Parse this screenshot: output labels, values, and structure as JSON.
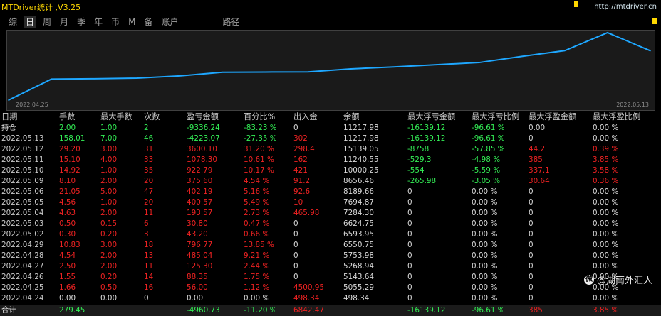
{
  "app": {
    "title": "MTDriver统计 ,V3.25",
    "url": "http://mtdriver.cn"
  },
  "tabs": [
    {
      "label": "综"
    },
    {
      "label": "日"
    },
    {
      "label": "周"
    },
    {
      "label": "月"
    },
    {
      "label": "季"
    },
    {
      "label": "年"
    },
    {
      "label": "币"
    },
    {
      "label": "M"
    },
    {
      "label": "备"
    },
    {
      "label": "账户"
    },
    {
      "label": "路径"
    }
  ],
  "active_tab": "日",
  "chart_data": {
    "type": "line",
    "x_start_label": "2022.04.25",
    "x_end_label": "2022.05.13",
    "x": [
      "2022.04.24",
      "2022.04.25",
      "2022.04.26",
      "2022.04.27",
      "2022.04.28",
      "2022.04.29",
      "2022.05.02",
      "2022.05.03",
      "2022.05.04",
      "2022.05.05",
      "2022.05.06",
      "2022.05.09",
      "2022.05.10",
      "2022.05.11",
      "2022.05.12",
      "2022.05.13"
    ],
    "series": [
      {
        "values": [
          498.34,
          5055.29,
          5143.64,
          5268.94,
          5753.98,
          6550.75,
          6593.95,
          6624.75,
          7284.3,
          7694.87,
          8189.66,
          8656.46,
          10000.25,
          11240.55,
          15139.05,
          11217.98
        ]
      }
    ],
    "line_color": "#1ea7ff"
  },
  "table": {
    "headers": [
      "日期",
      "手数",
      "最大手数",
      "次数",
      "盈亏金额",
      "百分比%",
      "出入金",
      "余额",
      "最大浮亏金额",
      "最大浮亏比例",
      "最大浮盈金额",
      "最大浮盈比例"
    ],
    "rows": [
      {
        "cells": [
          "持仓",
          "2.00",
          "1.00",
          "2",
          "-9336.24",
          "-83.23 %",
          "0",
          "11217.98",
          "-16139.12",
          "-96.61 %",
          "0.00",
          "0.00 %"
        ],
        "colors": [
          "w",
          "g",
          "g",
          "g",
          "g",
          "g",
          "w",
          "w",
          "g",
          "g",
          "w",
          "w"
        ]
      },
      {
        "cells": [
          "2022.05.13",
          "158.01",
          "7.00",
          "46",
          "-4223.07",
          "-27.35 %",
          "302",
          "11217.98",
          "-16139.12",
          "-96.61 %",
          "0",
          "0.00 %"
        ],
        "colors": [
          "w",
          "g",
          "g",
          "g",
          "g",
          "g",
          "r",
          "w",
          "g",
          "g",
          "w",
          "w"
        ]
      },
      {
        "cells": [
          "2022.05.12",
          "29.20",
          "3.00",
          "31",
          "3600.10",
          "31.20 %",
          "298.4",
          "15139.05",
          "-8758",
          "-57.85 %",
          "44.2",
          "0.39 %"
        ],
        "colors": [
          "w",
          "r",
          "r",
          "r",
          "r",
          "r",
          "r",
          "w",
          "g",
          "g",
          "r",
          "r"
        ]
      },
      {
        "cells": [
          "2022.05.11",
          "15.10",
          "4.00",
          "33",
          "1078.30",
          "10.61 %",
          "162",
          "11240.55",
          "-529.3",
          "-4.98 %",
          "385",
          "3.85 %"
        ],
        "colors": [
          "w",
          "r",
          "r",
          "r",
          "r",
          "r",
          "r",
          "w",
          "g",
          "g",
          "r",
          "r"
        ]
      },
      {
        "cells": [
          "2022.05.10",
          "14.92",
          "1.00",
          "35",
          "922.79",
          "10.17 %",
          "421",
          "10000.25",
          "-554",
          "-5.59 %",
          "337.1",
          "3.58 %"
        ],
        "colors": [
          "w",
          "r",
          "r",
          "r",
          "r",
          "r",
          "r",
          "w",
          "g",
          "g",
          "r",
          "r"
        ]
      },
      {
        "cells": [
          "2022.05.09",
          "8.10",
          "2.00",
          "20",
          "375.60",
          "4.54 %",
          "91.2",
          "8656.46",
          "-265.98",
          "-3.05 %",
          "30.64",
          "0.36 %"
        ],
        "colors": [
          "w",
          "r",
          "r",
          "r",
          "r",
          "r",
          "r",
          "w",
          "g",
          "g",
          "r",
          "r"
        ]
      },
      {
        "cells": [
          "2022.05.06",
          "21.05",
          "5.00",
          "47",
          "402.19",
          "5.16 %",
          "92.6",
          "8189.66",
          "0",
          "0.00 %",
          "0",
          "0.00 %"
        ],
        "colors": [
          "w",
          "r",
          "r",
          "r",
          "r",
          "r",
          "r",
          "w",
          "w",
          "w",
          "w",
          "w"
        ]
      },
      {
        "cells": [
          "2022.05.05",
          "4.56",
          "1.00",
          "20",
          "400.57",
          "5.49 %",
          "10",
          "7694.87",
          "0",
          "0.00 %",
          "0",
          "0.00 %"
        ],
        "colors": [
          "w",
          "r",
          "r",
          "r",
          "r",
          "r",
          "r",
          "w",
          "w",
          "w",
          "w",
          "w"
        ]
      },
      {
        "cells": [
          "2022.05.04",
          "4.63",
          "2.00",
          "11",
          "193.57",
          "2.73 %",
          "465.98",
          "7284.30",
          "0",
          "0.00 %",
          "0",
          "0.00 %"
        ],
        "colors": [
          "w",
          "r",
          "r",
          "r",
          "r",
          "r",
          "r",
          "w",
          "w",
          "w",
          "w",
          "w"
        ]
      },
      {
        "cells": [
          "2022.05.03",
          "0.50",
          "0.15",
          "6",
          "30.80",
          "0.47 %",
          "0",
          "6624.75",
          "0",
          "0.00 %",
          "0",
          "0.00 %"
        ],
        "colors": [
          "w",
          "r",
          "r",
          "r",
          "r",
          "r",
          "w",
          "w",
          "w",
          "w",
          "w",
          "w"
        ]
      },
      {
        "cells": [
          "2022.05.02",
          "0.30",
          "0.20",
          "3",
          "43.20",
          "0.66 %",
          "0",
          "6593.95",
          "0",
          "0.00 %",
          "0",
          "0.00 %"
        ],
        "colors": [
          "w",
          "r",
          "r",
          "r",
          "r",
          "r",
          "w",
          "w",
          "w",
          "w",
          "w",
          "w"
        ]
      },
      {
        "cells": [
          "2022.04.29",
          "10.83",
          "3.00",
          "18",
          "796.77",
          "13.85 %",
          "0",
          "6550.75",
          "0",
          "0.00 %",
          "0",
          "0.00 %"
        ],
        "colors": [
          "w",
          "r",
          "r",
          "r",
          "r",
          "r",
          "w",
          "w",
          "w",
          "w",
          "w",
          "w"
        ]
      },
      {
        "cells": [
          "2022.04.28",
          "4.54",
          "2.00",
          "13",
          "485.04",
          "9.21 %",
          "0",
          "5753.98",
          "0",
          "0.00 %",
          "0",
          "0.00 %"
        ],
        "colors": [
          "w",
          "r",
          "r",
          "r",
          "r",
          "r",
          "w",
          "w",
          "w",
          "w",
          "w",
          "w"
        ]
      },
      {
        "cells": [
          "2022.04.27",
          "2.50",
          "2.00",
          "11",
          "125.30",
          "2.44 %",
          "0",
          "5268.94",
          "0",
          "0.00 %",
          "0",
          "0.00 %"
        ],
        "colors": [
          "w",
          "r",
          "r",
          "r",
          "r",
          "r",
          "w",
          "w",
          "w",
          "w",
          "w",
          "w"
        ]
      },
      {
        "cells": [
          "2022.04.26",
          "1.55",
          "0.20",
          "14",
          "88.35",
          "1.75 %",
          "0",
          "5143.64",
          "0",
          "0.00 %",
          "0",
          "0.00 %"
        ],
        "colors": [
          "w",
          "r",
          "r",
          "r",
          "r",
          "r",
          "w",
          "w",
          "w",
          "w",
          "w",
          "w"
        ]
      },
      {
        "cells": [
          "2022.04.25",
          "1.66",
          "0.50",
          "16",
          "56.00",
          "1.12 %",
          "4500.95",
          "5055.29",
          "0",
          "0.00 %",
          "0",
          "0.00 %"
        ],
        "colors": [
          "w",
          "r",
          "r",
          "r",
          "r",
          "r",
          "r",
          "w",
          "w",
          "w",
          "w",
          "w"
        ]
      },
      {
        "cells": [
          "2022.04.24",
          "0.00",
          "0.00",
          "0",
          "0.00",
          "0.00 %",
          "498.34",
          "498.34",
          "0",
          "0.00 %",
          "0",
          "0.00 %"
        ],
        "colors": [
          "w",
          "w",
          "w",
          "w",
          "w",
          "w",
          "r",
          "w",
          "w",
          "w",
          "w",
          "w"
        ]
      }
    ],
    "total": {
      "cells": [
        "合计",
        "279.45",
        "",
        "",
        "-4960.73",
        "-11.20 %",
        "6842.47",
        "",
        "-16139.12",
        "-96.61 %",
        "385",
        "3.85 %"
      ],
      "colors": [
        "w",
        "g",
        "w",
        "w",
        "g",
        "g",
        "r",
        "w",
        "g",
        "g",
        "r",
        "r"
      ]
    }
  },
  "watermark": {
    "icon": "weibo-logo-icon",
    "text": "@湖南外汇人"
  }
}
